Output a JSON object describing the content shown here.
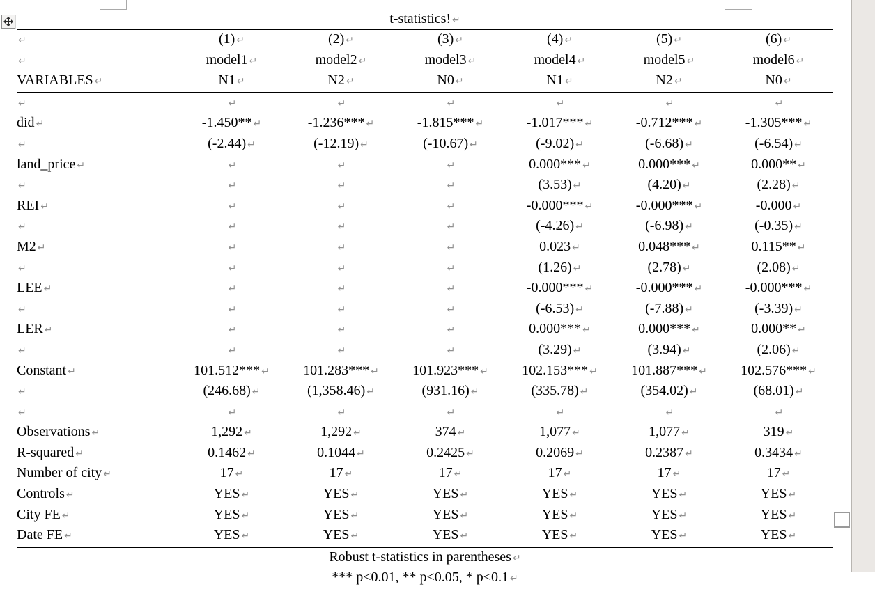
{
  "title": "t-statistics!",
  "pilcrow": "↵",
  "table": {
    "header_rows": [
      [
        "",
        "(1)",
        "(2)",
        "(3)",
        "(4)",
        "(5)",
        "(6)"
      ],
      [
        "",
        "model1",
        "model2",
        "model3",
        "model4",
        "model5",
        "model6"
      ],
      [
        "VARIABLES",
        "N1",
        "N2",
        "N0",
        "N1",
        "N2",
        "N0"
      ]
    ],
    "body_rows": [
      [
        "",
        "",
        "",
        "",
        "",
        "",
        ""
      ],
      [
        "did",
        "-1.450**",
        "-1.236***",
        "-1.815***",
        "-1.017***",
        "-0.712***",
        "-1.305***"
      ],
      [
        "",
        "(-2.44)",
        "(-12.19)",
        "(-10.67)",
        "(-9.02)",
        "(-6.68)",
        "(-6.54)"
      ],
      [
        "land_price",
        "",
        "",
        "",
        "0.000***",
        "0.000***",
        "0.000**"
      ],
      [
        "",
        "",
        "",
        "",
        "(3.53)",
        "(4.20)",
        "(2.28)"
      ],
      [
        "REI",
        "",
        "",
        "",
        "-0.000***",
        "-0.000***",
        "-0.000"
      ],
      [
        "",
        "",
        "",
        "",
        "(-4.26)",
        "(-6.98)",
        "(-0.35)"
      ],
      [
        "M2",
        "",
        "",
        "",
        "0.023",
        "0.048***",
        "0.115**"
      ],
      [
        "",
        "",
        "",
        "",
        "(1.26)",
        "(2.78)",
        "(2.08)"
      ],
      [
        "LEE",
        "",
        "",
        "",
        "-0.000***",
        "-0.000***",
        "-0.000***"
      ],
      [
        "",
        "",
        "",
        "",
        "(-6.53)",
        "(-7.88)",
        "(-3.39)"
      ],
      [
        "LER",
        "",
        "",
        "",
        "0.000***",
        "0.000***",
        "0.000**"
      ],
      [
        "",
        "",
        "",
        "",
        "(3.29)",
        "(3.94)",
        "(2.06)"
      ],
      [
        "Constant",
        "101.512***",
        "101.283***",
        "101.923***",
        "102.153***",
        "101.887***",
        "102.576***"
      ],
      [
        "",
        "(246.68)",
        "(1,358.46)",
        "(931.16)",
        "(335.78)",
        "(354.02)",
        "(68.01)"
      ],
      [
        "",
        "",
        "",
        "",
        "",
        "",
        ""
      ],
      [
        "Observations",
        "1,292",
        "1,292",
        "374",
        "1,077",
        "1,077",
        "319"
      ],
      [
        "R-squared",
        "0.1462",
        "0.1044",
        "0.2425",
        "0.2069",
        "0.2387",
        "0.3434"
      ],
      [
        "Number of city",
        "17",
        "17",
        "17",
        "17",
        "17",
        "17"
      ],
      [
        "Controls",
        "YES",
        "YES",
        "YES",
        "YES",
        "YES",
        "YES"
      ],
      [
        "City FE",
        "YES",
        "YES",
        "YES",
        "YES",
        "YES",
        "YES"
      ],
      [
        "Date FE",
        "YES",
        "YES",
        "YES",
        "YES",
        "YES",
        "YES"
      ]
    ],
    "notes": [
      "Robust t-statistics in parentheses",
      "*** p<0.01, ** p<0.05, * p<0.1"
    ]
  },
  "icons": {
    "move_handle": "move-cross-icon",
    "line_break_mark": "line-break-return-mark"
  },
  "colors": {
    "text": "#000000",
    "rule": "#000000",
    "mark_gray": "#909090",
    "scrollbar_track": "#ebe8e5",
    "chrome_border": "#9a9a9a"
  }
}
